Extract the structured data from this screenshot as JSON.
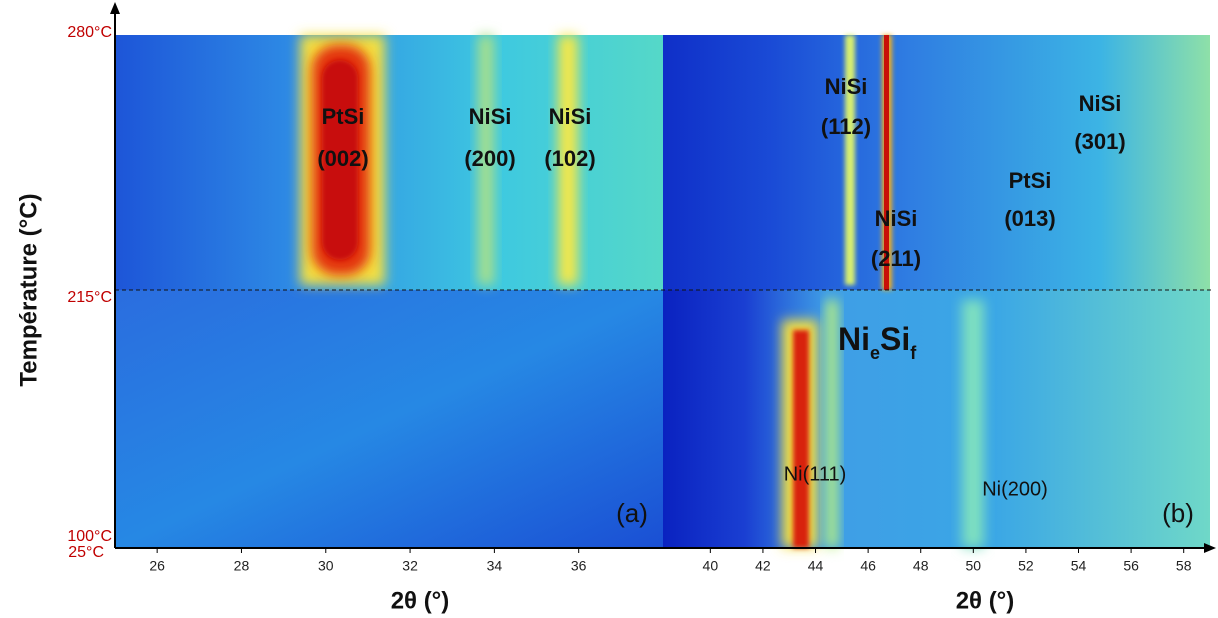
{
  "chart_data": [
    {
      "type": "heatmap",
      "panel_label": "(a)",
      "x_label": "2θ (°)",
      "xlim": [
        25,
        38
      ],
      "xticks": [
        26,
        28,
        30,
        32,
        34,
        36
      ],
      "annotations": [
        {
          "lines": [
            "PtSi",
            "(002)"
          ]
        },
        {
          "lines": [
            "NiSi",
            "(200)"
          ]
        },
        {
          "lines": [
            "NiSi",
            "(102)"
          ]
        }
      ]
    },
    {
      "type": "heatmap",
      "panel_label": "(b)",
      "x_label": "2θ (°)",
      "xlim": [
        38.2,
        59
      ],
      "xticks": [
        40,
        42,
        44,
        46,
        48,
        50,
        52,
        54,
        56,
        58
      ],
      "annotations": [
        {
          "lines": [
            "NiSi",
            "(112)"
          ]
        },
        {
          "lines": [
            "NiSi",
            "(211)"
          ]
        },
        {
          "lines": [
            "PtSi",
            "(013)"
          ]
        },
        {
          "lines": [
            "NiSi",
            "(301)"
          ]
        },
        {
          "lines": [
            "Ni(111)"
          ]
        },
        {
          "lines": [
            "Ni(200)"
          ]
        }
      ],
      "phase_label": {
        "parts": [
          "Ni",
          "e",
          "Si",
          "f"
        ]
      }
    }
  ],
  "y_axis": {
    "label": "Température (°C)",
    "temperature_labels": [
      "280°C",
      "215°C",
      "100°C",
      "25°C"
    ]
  }
}
